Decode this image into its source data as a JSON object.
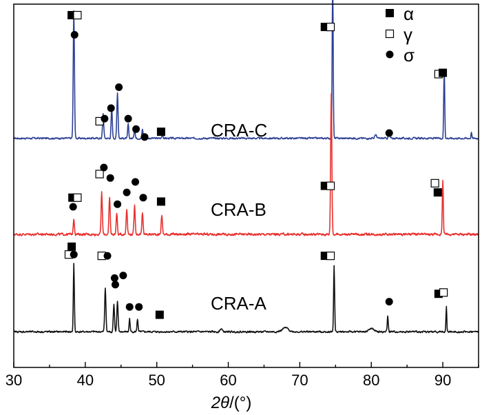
{
  "chart_data": {
    "type": "line",
    "xlabel_italic": "2θ",
    "xlabel_rest": "/(°)",
    "xlim": [
      30,
      95
    ],
    "x_ticks": [
      30,
      40,
      50,
      60,
      70,
      80,
      90
    ],
    "y_ticks_shown": false,
    "legend": [
      {
        "marker": "filled-square",
        "label": "α",
        "phase": "alpha"
      },
      {
        "marker": "open-square",
        "label": "γ",
        "phase": "gamma"
      },
      {
        "marker": "filled-circle",
        "label": "σ",
        "phase": "sigma"
      }
    ],
    "series": [
      {
        "name": "CRA-C",
        "color": "#2c3f96",
        "baseline": 0.3,
        "noise": 0.05,
        "peaks": [
          {
            "x": 38.4,
            "h": 4.85,
            "w": 0.12
          },
          {
            "x": 42.5,
            "h": 0.95,
            "w": 0.12
          },
          {
            "x": 43.7,
            "h": 1.1,
            "w": 0.12
          },
          {
            "x": 44.5,
            "h": 1.75,
            "w": 0.12
          },
          {
            "x": 46.0,
            "h": 0.55,
            "w": 0.1
          },
          {
            "x": 46.9,
            "h": 0.45,
            "w": 0.1
          },
          {
            "x": 48.0,
            "h": 0.35,
            "w": 0.1
          },
          {
            "x": 50.8,
            "h": 0.2,
            "w": 0.1
          },
          {
            "x": 74.6,
            "h": 6.0,
            "w": 0.1
          },
          {
            "x": 80.6,
            "h": 0.15,
            "w": 0.15
          },
          {
            "x": 82.5,
            "h": 0.3,
            "w": 0.12
          },
          {
            "x": 90.2,
            "h": 2.6,
            "w": 0.1
          },
          {
            "x": 94.0,
            "h": 0.25,
            "w": 0.08
          }
        ]
      },
      {
        "name": "CRA-B",
        "color": "#e8302e",
        "baseline": 0.45,
        "noise": 0.07,
        "peaks": [
          {
            "x": 38.4,
            "h": 0.6,
            "w": 0.12
          },
          {
            "x": 42.3,
            "h": 1.6,
            "w": 0.12
          },
          {
            "x": 43.4,
            "h": 1.4,
            "w": 0.12
          },
          {
            "x": 44.4,
            "h": 0.8,
            "w": 0.12
          },
          {
            "x": 45.8,
            "h": 1.0,
            "w": 0.12
          },
          {
            "x": 46.9,
            "h": 1.1,
            "w": 0.12
          },
          {
            "x": 48.0,
            "h": 0.8,
            "w": 0.12
          },
          {
            "x": 50.7,
            "h": 0.75,
            "w": 0.12
          },
          {
            "x": 74.4,
            "h": 5.4,
            "w": 0.12
          },
          {
            "x": 90.0,
            "h": 2.1,
            "w": 0.1
          }
        ]
      },
      {
        "name": "CRA-A",
        "color": "#111111",
        "baseline": 0.15,
        "noise": 0.05,
        "peaks": [
          {
            "x": 38.4,
            "h": 2.6,
            "w": 0.1
          },
          {
            "x": 42.8,
            "h": 1.7,
            "w": 0.12
          },
          {
            "x": 44.0,
            "h": 1.05,
            "w": 0.12
          },
          {
            "x": 44.5,
            "h": 1.15,
            "w": 0.12
          },
          {
            "x": 46.2,
            "h": 0.5,
            "w": 0.1
          },
          {
            "x": 47.3,
            "h": 0.5,
            "w": 0.1
          },
          {
            "x": 59.0,
            "h": 0.12,
            "w": 0.2
          },
          {
            "x": 68.0,
            "h": 0.15,
            "w": 0.6
          },
          {
            "x": 74.8,
            "h": 2.55,
            "w": 0.1
          },
          {
            "x": 80.0,
            "h": 0.12,
            "w": 0.5
          },
          {
            "x": 82.3,
            "h": 0.6,
            "w": 0.1
          },
          {
            "x": 90.5,
            "h": 0.95,
            "w": 0.08
          }
        ]
      }
    ],
    "phase_markers": [
      {
        "series": "CRA-C",
        "phase": "alpha",
        "x": 38.1,
        "y": 5.0
      },
      {
        "series": "CRA-C",
        "phase": "gamma",
        "x": 38.9,
        "y": 5.0
      },
      {
        "series": "CRA-C",
        "phase": "sigma",
        "x": 38.5,
        "y": 4.25
      },
      {
        "series": "CRA-C",
        "phase": "gamma",
        "x": 42.0,
        "y": 0.95
      },
      {
        "series": "CRA-C",
        "phase": "sigma",
        "x": 42.7,
        "y": 1.05
      },
      {
        "series": "CRA-C",
        "phase": "sigma",
        "x": 43.6,
        "y": 1.45
      },
      {
        "series": "CRA-C",
        "phase": "sigma",
        "x": 44.7,
        "y": 2.25
      },
      {
        "series": "CRA-C",
        "phase": "sigma",
        "x": 46.0,
        "y": 1.05
      },
      {
        "series": "CRA-C",
        "phase": "sigma",
        "x": 47.1,
        "y": 0.65
      },
      {
        "series": "CRA-C",
        "phase": "sigma",
        "x": 48.3,
        "y": 0.35
      },
      {
        "series": "CRA-C",
        "phase": "alpha",
        "x": 50.6,
        "y": 0.55
      },
      {
        "series": "CRA-C",
        "phase": "alpha",
        "x": 73.5,
        "y": 4.55
      },
      {
        "series": "CRA-C",
        "phase": "gamma",
        "x": 74.3,
        "y": 4.55
      },
      {
        "series": "CRA-C",
        "phase": "sigma",
        "x": 82.5,
        "y": 0.5
      },
      {
        "series": "CRA-C",
        "phase": "gamma",
        "x": 89.4,
        "y": 2.75
      },
      {
        "series": "CRA-C",
        "phase": "alpha",
        "x": 90.0,
        "y": 2.8
      },
      {
        "series": "CRA-B",
        "phase": "alpha",
        "x": 38.2,
        "y": 1.85
      },
      {
        "series": "CRA-B",
        "phase": "gamma",
        "x": 38.9,
        "y": 1.85
      },
      {
        "series": "CRA-B",
        "phase": "sigma",
        "x": 38.3,
        "y": 1.5
      },
      {
        "series": "CRA-B",
        "phase": "gamma",
        "x": 42.0,
        "y": 2.75
      },
      {
        "series": "CRA-B",
        "phase": "sigma",
        "x": 42.6,
        "y": 3.0
      },
      {
        "series": "CRA-B",
        "phase": "sigma",
        "x": 43.5,
        "y": 2.6
      },
      {
        "series": "CRA-B",
        "phase": "sigma",
        "x": 44.5,
        "y": 1.6
      },
      {
        "series": "CRA-B",
        "phase": "sigma",
        "x": 45.8,
        "y": 2.05
      },
      {
        "series": "CRA-B",
        "phase": "sigma",
        "x": 47.0,
        "y": 2.45
      },
      {
        "series": "CRA-B",
        "phase": "sigma",
        "x": 48.1,
        "y": 1.85
      },
      {
        "series": "CRA-B",
        "phase": "alpha",
        "x": 50.6,
        "y": 1.7
      },
      {
        "series": "CRA-B",
        "phase": "alpha",
        "x": 73.5,
        "y": 2.3
      },
      {
        "series": "CRA-B",
        "phase": "gamma",
        "x": 74.3,
        "y": 2.3
      },
      {
        "series": "CRA-B",
        "phase": "gamma",
        "x": 88.9,
        "y": 2.4
      },
      {
        "series": "CRA-B",
        "phase": "alpha",
        "x": 89.3,
        "y": 2.05
      },
      {
        "series": "CRA-A",
        "phase": "alpha",
        "x": 38.1,
        "y": 3.4
      },
      {
        "series": "CRA-A",
        "phase": "gamma",
        "x": 37.7,
        "y": 3.1
      },
      {
        "series": "CRA-A",
        "phase": "sigma",
        "x": 38.4,
        "y": 3.1
      },
      {
        "series": "CRA-A",
        "phase": "gamma",
        "x": 42.3,
        "y": 3.05
      },
      {
        "series": "CRA-A",
        "phase": "sigma",
        "x": 43.1,
        "y": 3.05
      },
      {
        "series": "CRA-A",
        "phase": "sigma",
        "x": 44.1,
        "y": 2.2
      },
      {
        "series": "CRA-A",
        "phase": "sigma",
        "x": 45.3,
        "y": 2.3
      },
      {
        "series": "CRA-A",
        "phase": "sigma",
        "x": 44.2,
        "y": 1.95
      },
      {
        "series": "CRA-A",
        "phase": "sigma",
        "x": 46.2,
        "y": 1.1
      },
      {
        "series": "CRA-A",
        "phase": "sigma",
        "x": 47.5,
        "y": 1.1
      },
      {
        "series": "CRA-A",
        "phase": "alpha",
        "x": 50.4,
        "y": 0.8
      },
      {
        "series": "CRA-A",
        "phase": "alpha",
        "x": 73.5,
        "y": 3.05
      },
      {
        "series": "CRA-A",
        "phase": "gamma",
        "x": 74.3,
        "y": 3.05
      },
      {
        "series": "CRA-A",
        "phase": "sigma",
        "x": 82.5,
        "y": 1.3
      },
      {
        "series": "CRA-A",
        "phase": "alpha",
        "x": 89.4,
        "y": 1.6
      },
      {
        "series": "CRA-A",
        "phase": "gamma",
        "x": 90.1,
        "y": 1.65
      }
    ]
  }
}
